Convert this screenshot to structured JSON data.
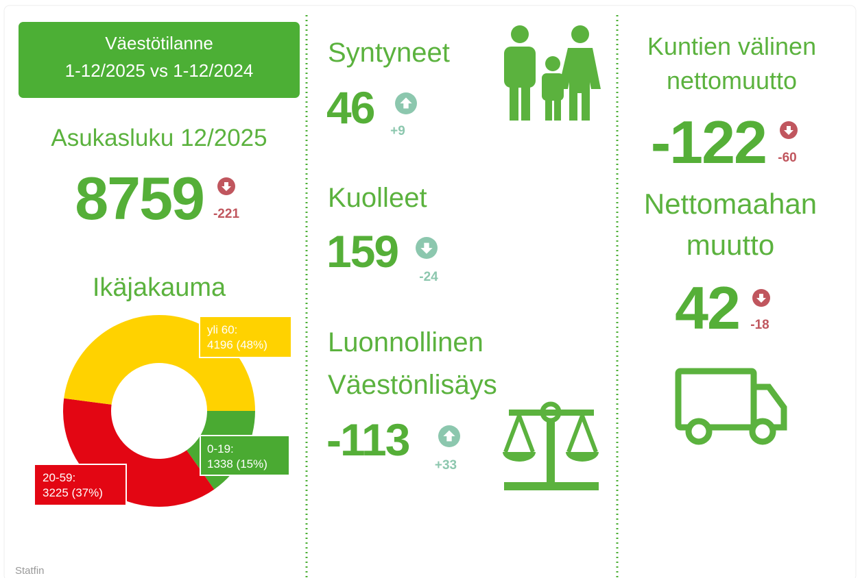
{
  "header": {
    "lines": [
      "Väestötilanne",
      "1-12/2025 vs 1-12/2024"
    ]
  },
  "metrics": [
    {
      "title": [
        "Asukasluku 12/2025"
      ],
      "value": 8759,
      "change": -221,
      "trend": "down",
      "change_color": "#c0565e"
    },
    {
      "title": [
        "Syntyneet"
      ],
      "value": 46,
      "change": "+9",
      "trend": "up",
      "change_color": "#8cc7ae"
    },
    {
      "title": [
        "Kuolleet"
      ],
      "value": 159,
      "change": -24,
      "trend": "down",
      "change_color": "#8cc7ae"
    },
    {
      "title": [
        "Luonnollinen",
        "Väestönlisäys"
      ],
      "value": -113,
      "change": "+33",
      "trend": "up",
      "change_color": "#8cc7ae"
    },
    {
      "title": [
        "Kuntien välinen",
        "nettomuutto"
      ],
      "value": -122,
      "change": -60,
      "trend": "down",
      "change_color": "#c0565e"
    },
    {
      "title": [
        "Nettomaahan",
        "muutto"
      ],
      "value": 42,
      "change": -18,
      "trend": "down",
      "change_color": "#c0565e"
    }
  ],
  "chart_data": {
    "type": "donut",
    "title": "Ikäjakauma",
    "categories": [
      "0-19:",
      "20-59:",
      "yli 60:"
    ],
    "values": [
      1338,
      3225,
      4196
    ],
    "value_labels": [
      "1338 (15%)",
      "3225 (37%)",
      "4196 (48%)"
    ],
    "colors": [
      "#4aaa32",
      "#e30613",
      "#ffd200"
    ]
  },
  "footer": "Statfin"
}
